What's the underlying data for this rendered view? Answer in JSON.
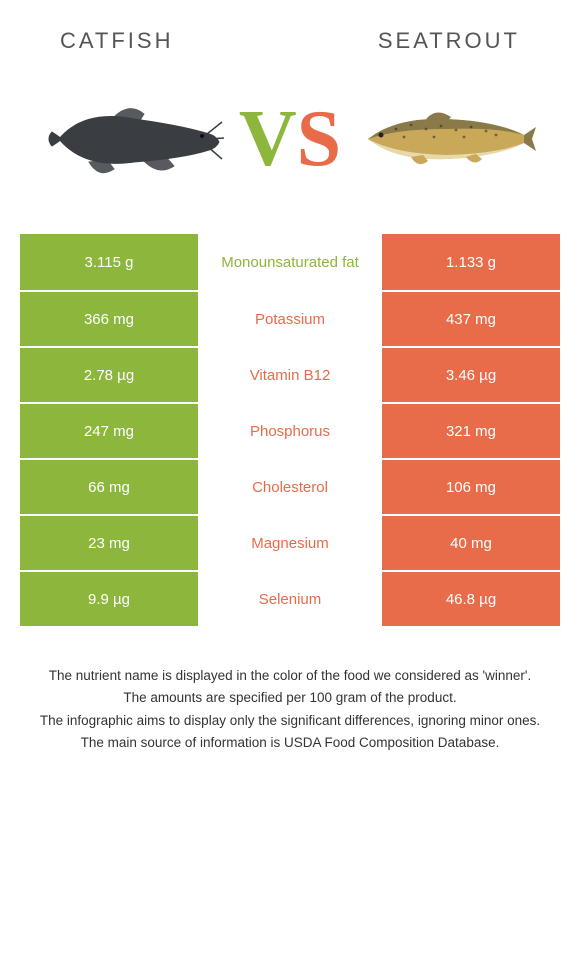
{
  "colors": {
    "green": "#8cb63c",
    "orange": "#e86b4a",
    "catfish_body": "#3a3e42",
    "trout_body": "#c9a85a",
    "trout_belly": "#e8d9a8",
    "trout_back": "#8a7a4a"
  },
  "left": {
    "title": "Catfish"
  },
  "right": {
    "title": "Seatrout"
  },
  "vs": {
    "v": "V",
    "s": "S"
  },
  "rows": [
    {
      "left": "3.115 g",
      "label": "Monounsaturated fat",
      "right": "1.133 g",
      "winner": "left"
    },
    {
      "left": "366 mg",
      "label": "Potassium",
      "right": "437 mg",
      "winner": "right"
    },
    {
      "left": "2.78 µg",
      "label": "Vitamin B12",
      "right": "3.46 µg",
      "winner": "right"
    },
    {
      "left": "247 mg",
      "label": "Phosphorus",
      "right": "321 mg",
      "winner": "right"
    },
    {
      "left": "66 mg",
      "label": "Cholesterol",
      "right": "106 mg",
      "winner": "right"
    },
    {
      "left": "23 mg",
      "label": "Magnesium",
      "right": "40 mg",
      "winner": "right"
    },
    {
      "left": "9.9 µg",
      "label": "Selenium",
      "right": "46.8 µg",
      "winner": "right"
    }
  ],
  "footer": {
    "l1": "The nutrient name is displayed in the color of the food we considered as 'winner'.",
    "l2": "The amounts are specified per 100 gram of the product.",
    "l3": "The infographic aims to display only the significant differences, ignoring minor ones.",
    "l4": "The main source of information is USDA Food Composition Database."
  }
}
